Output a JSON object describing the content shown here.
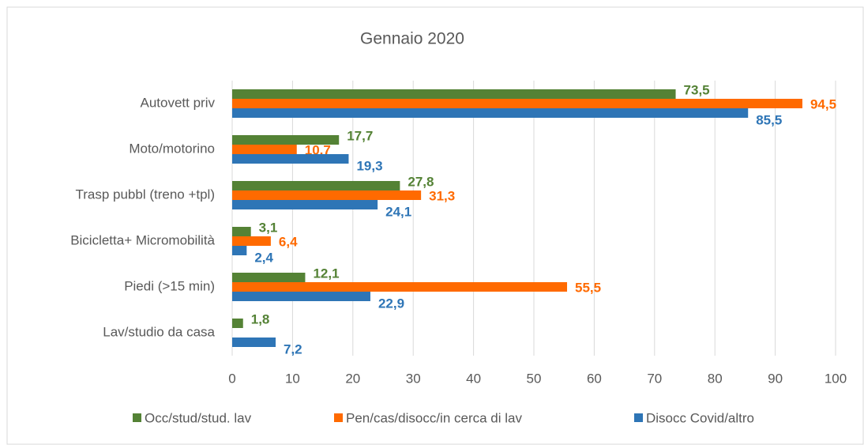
{
  "chart_data": {
    "type": "bar",
    "orientation": "horizontal",
    "title": "Gennaio 2020",
    "categories": [
      "Autovett priv",
      "Moto/motorino",
      "Trasp pubbl (treno +tpl)",
      "Bicicletta+ Micromobilità",
      "Piedi (>15 min)",
      "Lav/studio da casa"
    ],
    "series": [
      {
        "name": "Occ/stud/stud. lav",
        "color": "#548235",
        "values": [
          73.5,
          17.7,
          27.8,
          3.1,
          12.1,
          1.8
        ],
        "value_labels": [
          "73,5",
          "17,7",
          "27,8",
          "3,1",
          "12,1",
          "1,8"
        ]
      },
      {
        "name": "Pen/cas/disocc/in cerca di lav",
        "color": "#ff6a00",
        "values": [
          94.5,
          10.7,
          31.3,
          6.4,
          55.5,
          null
        ],
        "value_labels": [
          "94,5",
          "10,7",
          "31,3",
          "6,4",
          "55,5",
          null
        ]
      },
      {
        "name": "Disocc Covid/altro",
        "color": "#2e75b6",
        "values": [
          85.5,
          19.3,
          24.1,
          2.4,
          22.9,
          7.2
        ],
        "value_labels": [
          "85,5",
          "19,3",
          "24,1",
          "2,4",
          "22,9",
          "7,2"
        ]
      }
    ],
    "xlim": [
      0,
      100
    ],
    "xticks": [
      0,
      10,
      20,
      30,
      40,
      50,
      60,
      70,
      80,
      90,
      100
    ],
    "grid": true,
    "legend": "bottom"
  }
}
